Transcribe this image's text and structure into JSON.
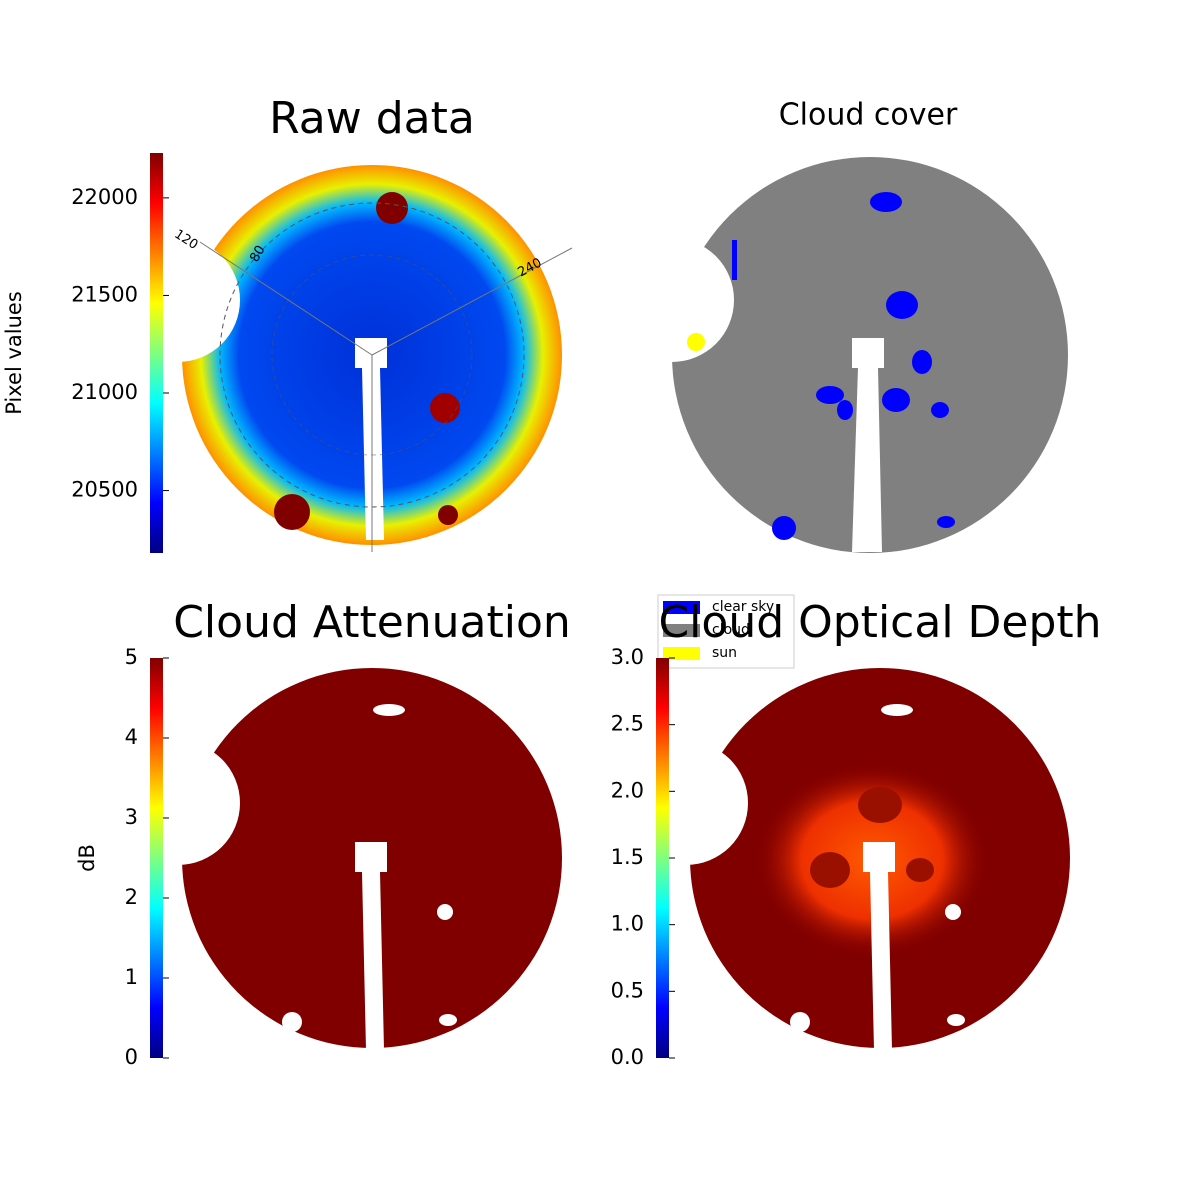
{
  "chart_data": [
    {
      "type": "image",
      "title": "Raw data",
      "colorbar": {
        "label": "Pixel values",
        "lim": [
          20180,
          22230
        ],
        "ticks": [
          20500,
          21000,
          21500,
          22000
        ],
        "cmap": "jet"
      },
      "annotations": [
        "120",
        "80",
        "240"
      ]
    },
    {
      "type": "image",
      "title": "Cloud cover",
      "legend": [
        {
          "name": "clear sky",
          "color": "#0000ff"
        },
        {
          "name": "cloud",
          "color": "#808080"
        },
        {
          "name": "sun",
          "color": "#ffff00"
        }
      ]
    },
    {
      "type": "image",
      "title": "Cloud Attenuation",
      "colorbar": {
        "label": "dB",
        "lim": [
          0,
          5
        ],
        "ticks": [
          0,
          1,
          2,
          3,
          4,
          5
        ],
        "cmap": "jet"
      }
    },
    {
      "type": "image",
      "title": "Cloud Optical Depth",
      "colorbar": {
        "lim": [
          0,
          3
        ],
        "ticks": [
          {
            "value": 0,
            "label": "0.0"
          },
          {
            "value": 0.5,
            "label": "0.5"
          },
          {
            "value": 1,
            "label": "1.0"
          },
          {
            "value": 1.5,
            "label": "1.5"
          },
          {
            "value": 2,
            "label": "2.0"
          },
          {
            "value": 2.5,
            "label": "2.5"
          },
          {
            "value": 3,
            "label": "3.0"
          }
        ],
        "cmap": "jet"
      }
    }
  ]
}
